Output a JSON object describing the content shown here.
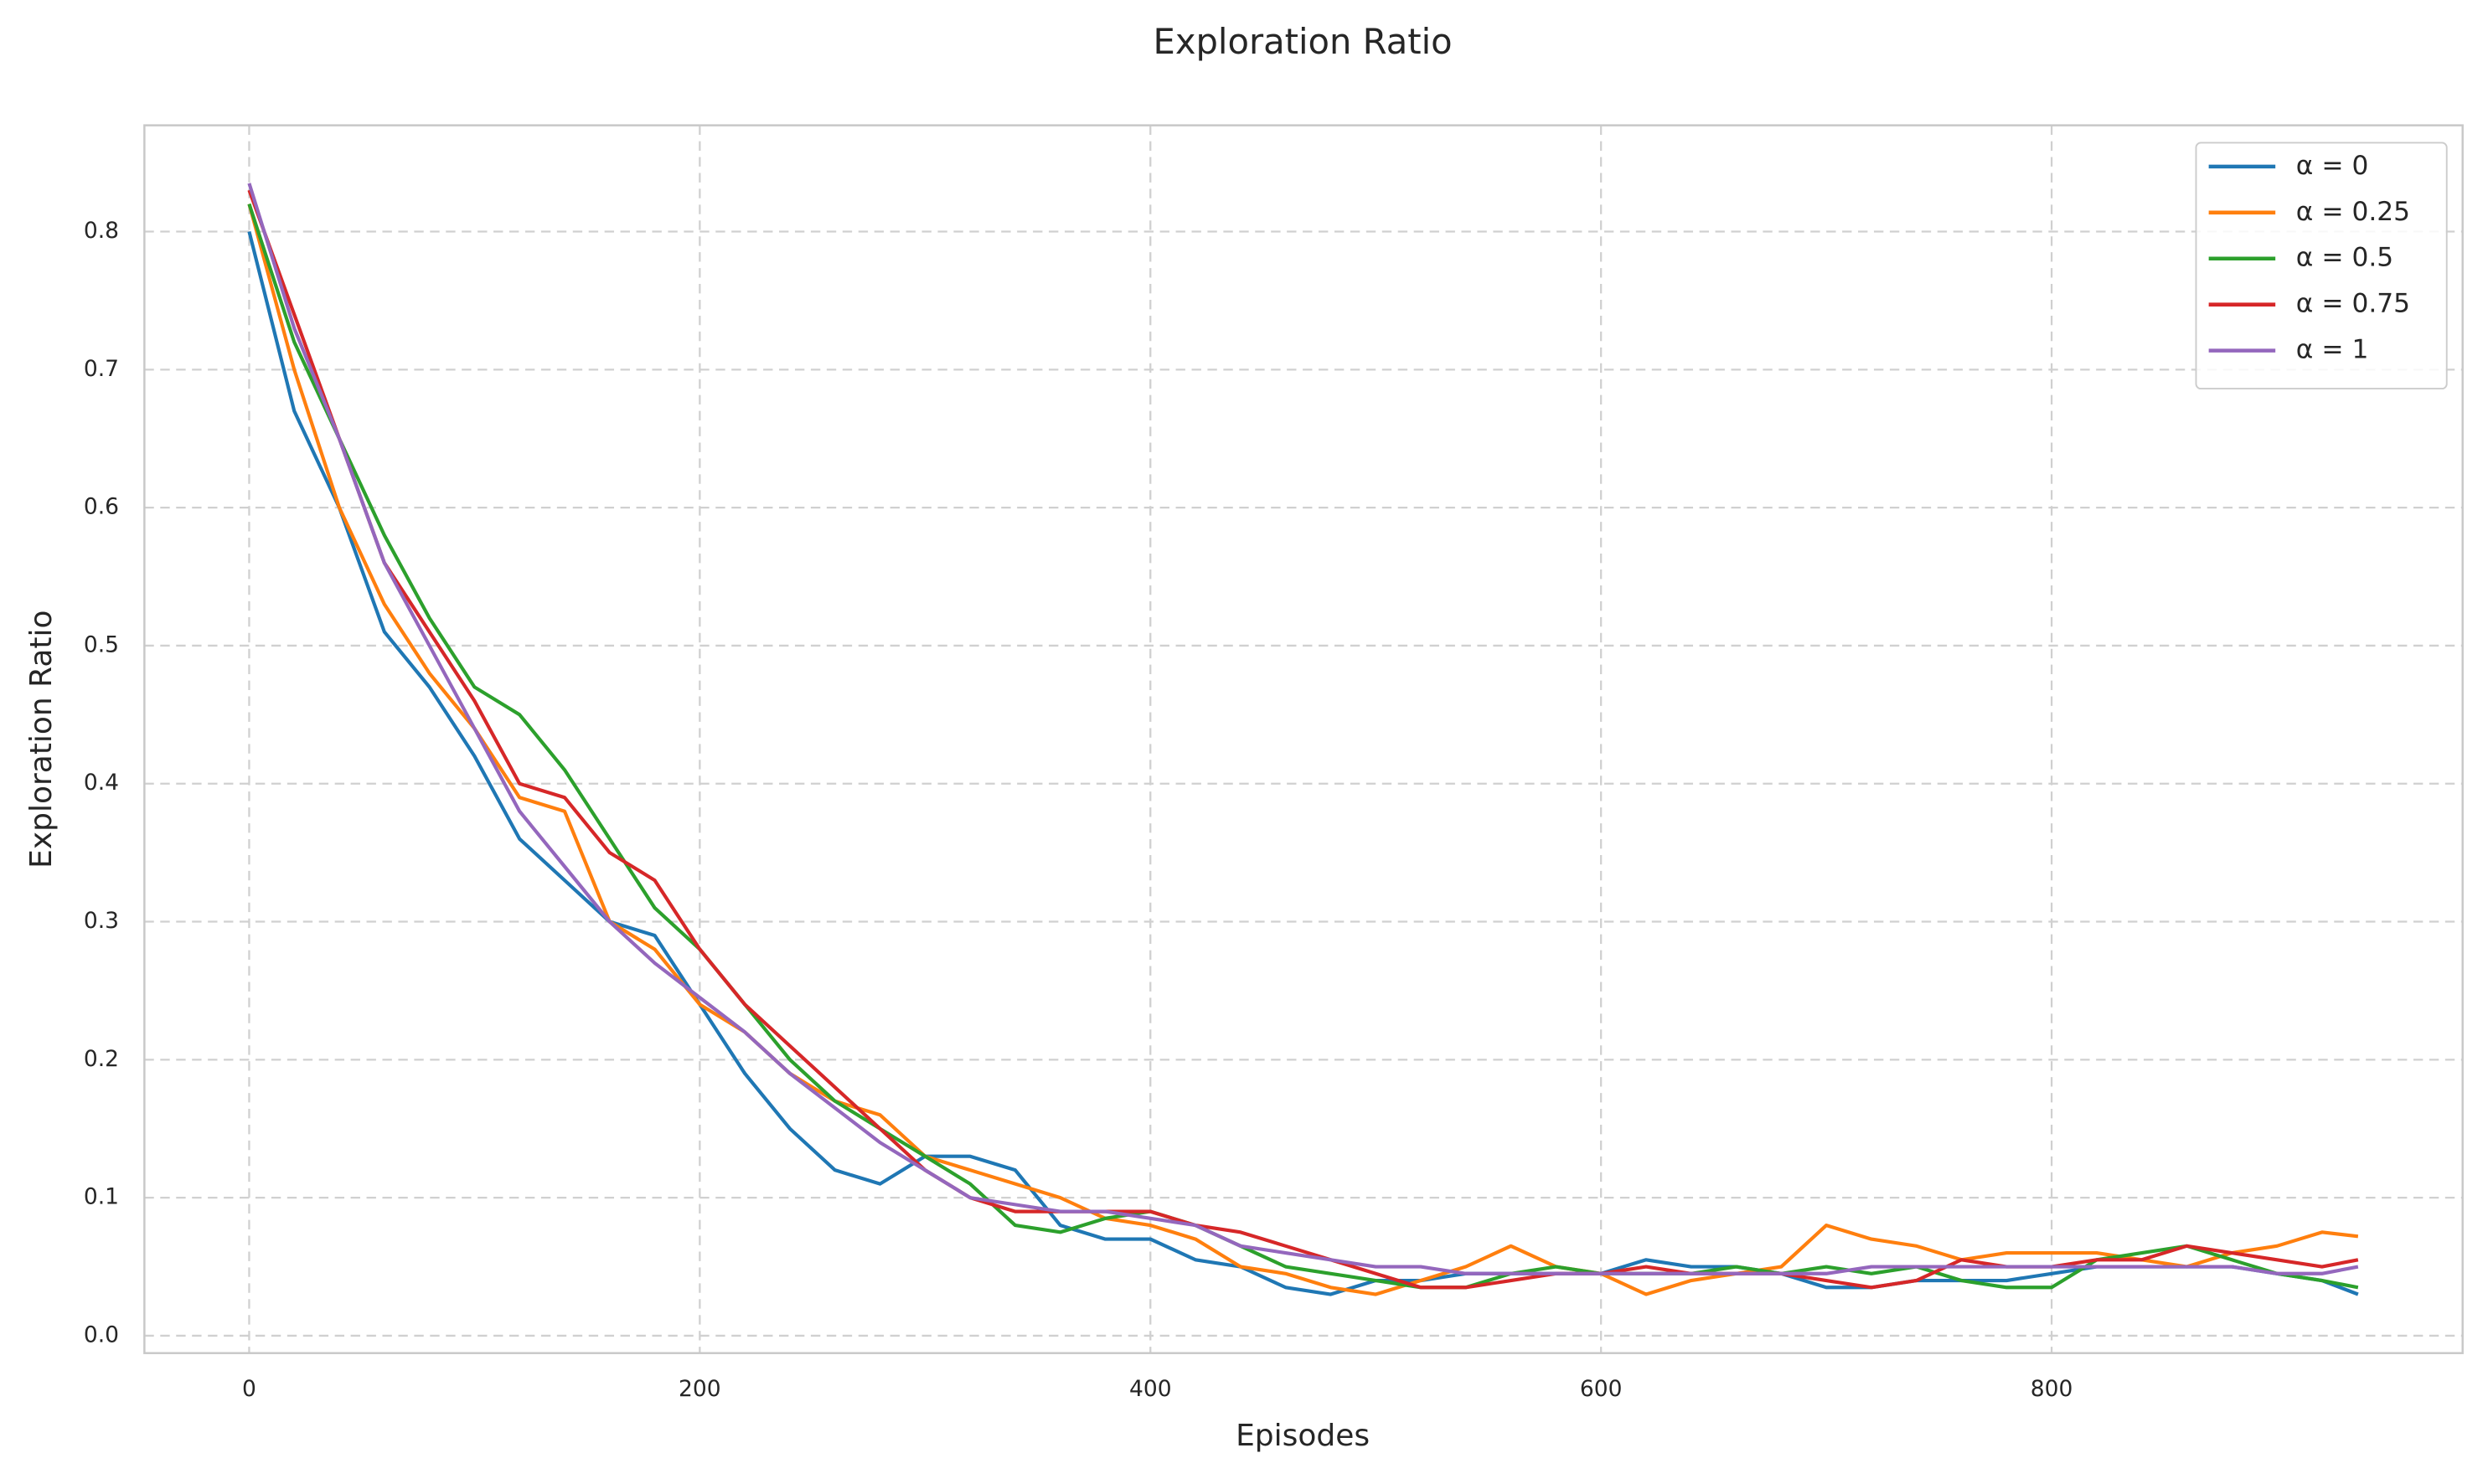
{
  "chart_data": {
    "type": "line",
    "title": "Exploration Ratio",
    "x_label": "Episodes",
    "y_label": "Exploration Ratio",
    "x": [
      0,
      20,
      40,
      60,
      80,
      100,
      120,
      140,
      160,
      180,
      200,
      220,
      240,
      260,
      280,
      300,
      320,
      340,
      360,
      380,
      400,
      420,
      440,
      460,
      480,
      500,
      520,
      540,
      560,
      580,
      600,
      620,
      640,
      660,
      680,
      700,
      720,
      740,
      760,
      780,
      800,
      820,
      840,
      860,
      880,
      900,
      920,
      936
    ],
    "series": [
      {
        "name": "α = 0",
        "color": "#1f77b4",
        "values": [
          0.8,
          0.67,
          0.6,
          0.51,
          0.47,
          0.42,
          0.36,
          0.33,
          0.3,
          0.29,
          0.24,
          0.19,
          0.15,
          0.12,
          0.11,
          0.13,
          0.13,
          0.12,
          0.08,
          0.07,
          0.07,
          0.055,
          0.05,
          0.035,
          0.03,
          0.04,
          0.04,
          0.045,
          0.045,
          0.045,
          0.045,
          0.055,
          0.05,
          0.05,
          0.045,
          0.035,
          0.035,
          0.04,
          0.04,
          0.04,
          0.045,
          0.05,
          0.05,
          0.05,
          0.05,
          0.045,
          0.04,
          0.03
        ]
      },
      {
        "name": "α = 0.25",
        "color": "#ff7f0e",
        "values": [
          0.82,
          0.7,
          0.6,
          0.53,
          0.48,
          0.44,
          0.39,
          0.38,
          0.3,
          0.28,
          0.24,
          0.22,
          0.19,
          0.17,
          0.16,
          0.13,
          0.12,
          0.11,
          0.1,
          0.085,
          0.08,
          0.07,
          0.05,
          0.045,
          0.035,
          0.03,
          0.04,
          0.05,
          0.065,
          0.05,
          0.045,
          0.03,
          0.04,
          0.045,
          0.05,
          0.08,
          0.07,
          0.065,
          0.055,
          0.06,
          0.06,
          0.06,
          0.055,
          0.05,
          0.06,
          0.065,
          0.075,
          0.072
        ]
      },
      {
        "name": "α = 0.5",
        "color": "#2ca02c",
        "values": [
          0.82,
          0.72,
          0.65,
          0.58,
          0.52,
          0.47,
          0.45,
          0.41,
          0.36,
          0.31,
          0.28,
          0.24,
          0.2,
          0.17,
          0.15,
          0.13,
          0.11,
          0.08,
          0.075,
          0.085,
          0.09,
          0.08,
          0.065,
          0.05,
          0.045,
          0.04,
          0.035,
          0.035,
          0.045,
          0.05,
          0.045,
          0.045,
          0.045,
          0.05,
          0.045,
          0.05,
          0.045,
          0.05,
          0.04,
          0.035,
          0.035,
          0.055,
          0.06,
          0.065,
          0.055,
          0.045,
          0.04,
          0.035
        ]
      },
      {
        "name": "α = 0.75",
        "color": "#d62728",
        "values": [
          0.83,
          0.74,
          0.65,
          0.56,
          0.51,
          0.46,
          0.4,
          0.39,
          0.35,
          0.33,
          0.28,
          0.24,
          0.21,
          0.18,
          0.15,
          0.12,
          0.1,
          0.09,
          0.09,
          0.09,
          0.09,
          0.08,
          0.075,
          0.065,
          0.055,
          0.045,
          0.035,
          0.035,
          0.04,
          0.045,
          0.045,
          0.05,
          0.045,
          0.045,
          0.045,
          0.04,
          0.035,
          0.04,
          0.055,
          0.05,
          0.05,
          0.055,
          0.055,
          0.065,
          0.06,
          0.055,
          0.05,
          0.055
        ]
      },
      {
        "name": "α = 1",
        "color": "#9467bd",
        "values": [
          0.835,
          0.73,
          0.65,
          0.56,
          0.5,
          0.44,
          0.38,
          0.34,
          0.3,
          0.27,
          0.245,
          0.22,
          0.19,
          0.165,
          0.14,
          0.12,
          0.1,
          0.095,
          0.09,
          0.09,
          0.085,
          0.08,
          0.065,
          0.06,
          0.055,
          0.05,
          0.05,
          0.045,
          0.045,
          0.045,
          0.045,
          0.045,
          0.045,
          0.045,
          0.045,
          0.045,
          0.05,
          0.05,
          0.05,
          0.05,
          0.05,
          0.05,
          0.05,
          0.05,
          0.05,
          0.045,
          0.045,
          0.05
        ]
      }
    ],
    "xlim": [
      -46.5,
      982.4
    ],
    "ylim": [
      -0.0126,
      0.877
    ],
    "xticks": [
      0,
      200,
      400,
      600,
      800
    ],
    "yticks": [
      {
        "value": 0,
        "label": "0.0"
      },
      0.1,
      0.2,
      0.3,
      0.4,
      0.5,
      0.6,
      0.7,
      0.8
    ],
    "grid": true,
    "legend": "upper right"
  }
}
